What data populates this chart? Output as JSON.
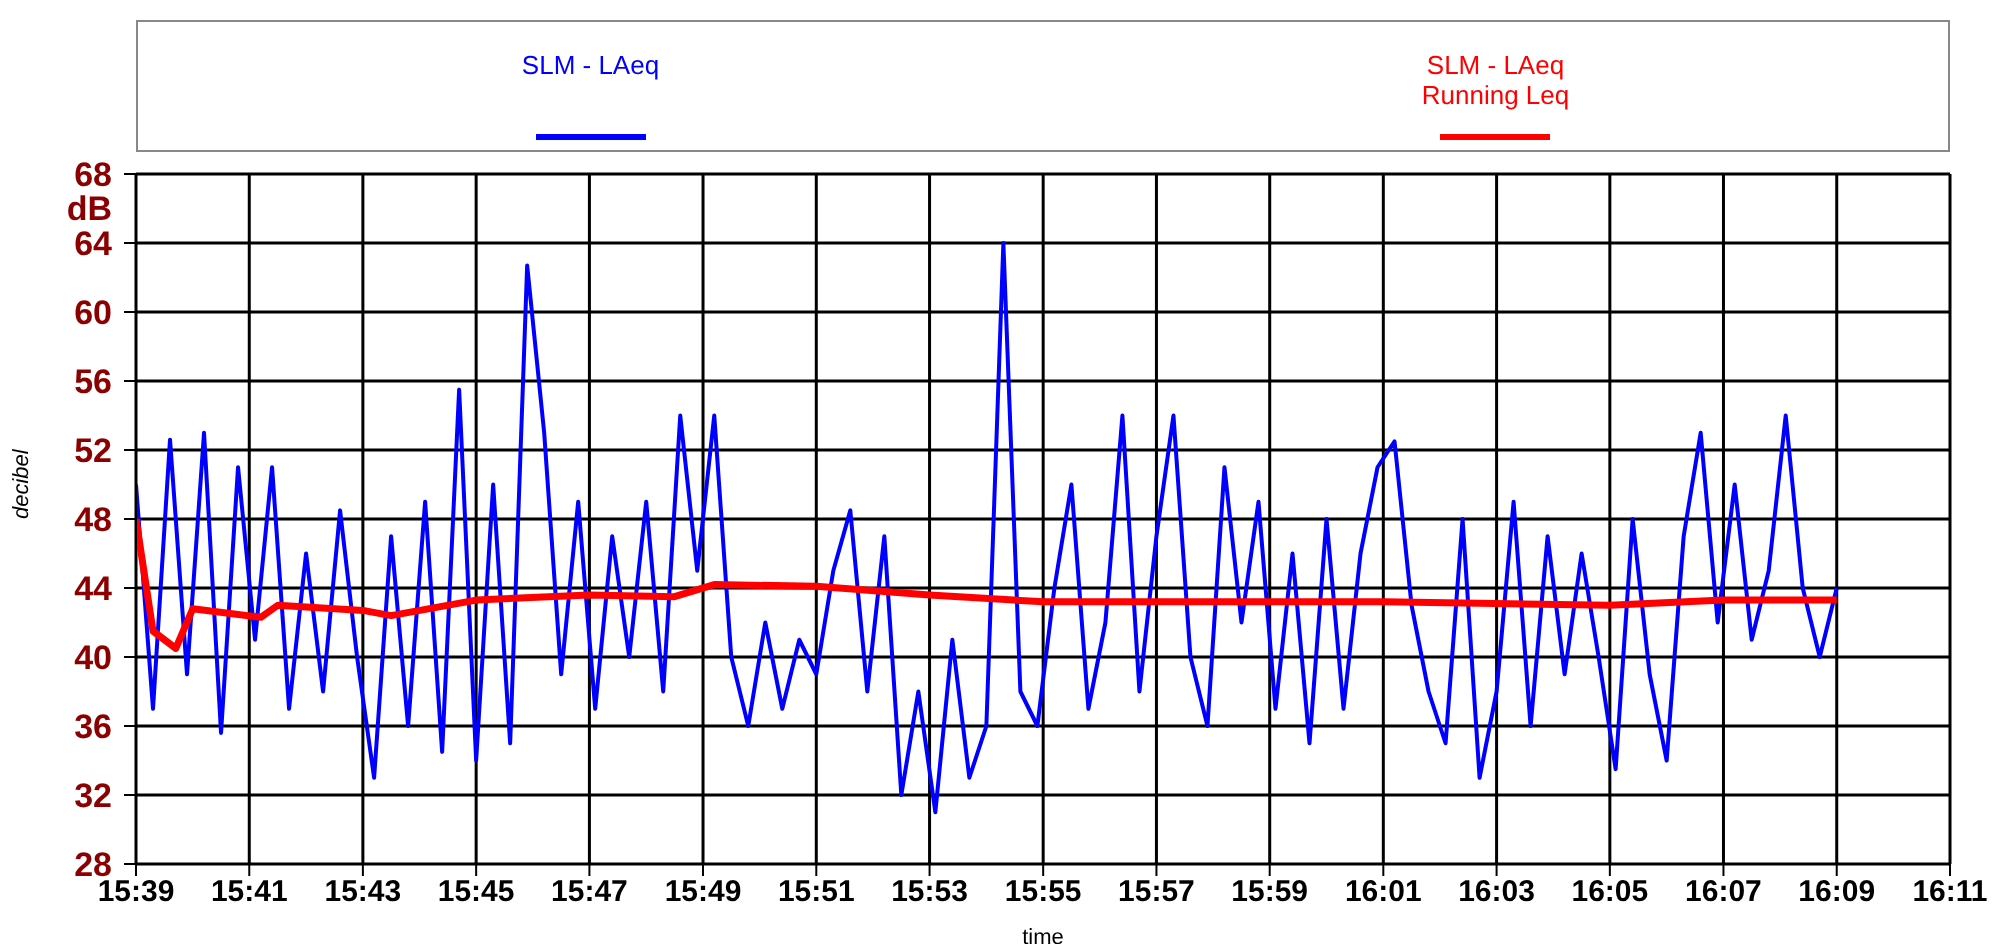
{
  "chart_data": {
    "type": "line",
    "xlabel": "time",
    "ylabel": "decibel",
    "legend": "top",
    "grid": true,
    "xlim": [
      15.65,
      16.1833
    ],
    "ylim": [
      28,
      68
    ],
    "xticks": [
      {
        "value": 15.65,
        "label": "15:39"
      },
      {
        "value": 15.6833,
        "label": "15:41"
      },
      {
        "value": 15.7167,
        "label": "15:43"
      },
      {
        "value": 15.75,
        "label": "15:45"
      },
      {
        "value": 15.7833,
        "label": "15:47"
      },
      {
        "value": 15.8167,
        "label": "15:49"
      },
      {
        "value": 15.85,
        "label": "15:51"
      },
      {
        "value": 15.8833,
        "label": "15:53"
      },
      {
        "value": 15.9167,
        "label": "15:55"
      },
      {
        "value": 15.95,
        "label": "15:57"
      },
      {
        "value": 15.9833,
        "label": "15:59"
      },
      {
        "value": 16.0167,
        "label": "16:01"
      },
      {
        "value": 16.05,
        "label": "16:03"
      },
      {
        "value": 16.0833,
        "label": "16:05"
      },
      {
        "value": 16.1167,
        "label": "16:07"
      },
      {
        "value": 16.15,
        "label": "16:09"
      },
      {
        "value": 16.1833,
        "label": "16:11"
      }
    ],
    "yticks": [
      28,
      32,
      36,
      40,
      44,
      48,
      52,
      56,
      60,
      64,
      {
        "value": 68,
        "label": "68\ndB"
      }
    ],
    "series": [
      {
        "name": "SLM - LAeq",
        "color": "#0000ff",
        "x": [
          15.65,
          15.655,
          15.66,
          15.665,
          15.67,
          15.675,
          15.68,
          15.685,
          15.69,
          15.695,
          15.7,
          15.705,
          15.71,
          15.715,
          15.72,
          15.725,
          15.73,
          15.735,
          15.74,
          15.745,
          15.75,
          15.755,
          15.76,
          15.765,
          15.77,
          15.775,
          15.78,
          15.785,
          15.79,
          15.795,
          15.8,
          15.805,
          15.81,
          15.815,
          15.82,
          15.825,
          15.83,
          15.835,
          15.84,
          15.845,
          15.85,
          15.855,
          15.86,
          15.865,
          15.87,
          15.875,
          15.88,
          15.885,
          15.89,
          15.895,
          15.9,
          15.905,
          15.91,
          15.915,
          15.92,
          15.925,
          15.93,
          15.935,
          15.94,
          15.945,
          15.95,
          15.955,
          15.96,
          15.965,
          15.97,
          15.975,
          15.98,
          15.985,
          15.99,
          15.995,
          16.0,
          16.005,
          16.01,
          16.015,
          16.02,
          16.025,
          16.03,
          16.035,
          16.04,
          16.045,
          16.05,
          16.055,
          16.06,
          16.065,
          16.07,
          16.075,
          16.08,
          16.085,
          16.09,
          16.095,
          16.1,
          16.105,
          16.11,
          16.115,
          16.12,
          16.125,
          16.13,
          16.135,
          16.14,
          16.145,
          16.15
        ],
        "values": [
          50,
          37,
          52.6,
          39,
          53,
          35.6,
          51,
          41,
          51,
          37,
          46,
          38,
          48.5,
          40,
          33,
          47,
          36,
          49,
          34.5,
          55.5,
          34,
          50,
          35,
          62.7,
          53,
          39,
          49,
          37,
          47,
          40,
          49,
          38,
          54,
          45,
          54,
          40,
          36,
          42,
          37,
          41,
          39,
          45,
          48.5,
          38,
          47,
          32,
          38,
          31,
          41,
          33,
          36,
          64,
          38,
          36,
          44,
          50,
          37,
          42,
          54,
          38,
          47,
          54,
          40,
          36,
          51,
          42,
          49,
          37,
          46,
          35,
          48,
          37,
          46,
          51,
          52.5,
          43,
          38,
          35,
          48,
          33,
          38,
          49,
          36,
          47,
          39,
          46,
          40,
          33.5,
          48,
          39,
          34,
          47,
          53,
          42,
          50,
          41,
          45,
          54,
          44,
          40,
          44
        ]
      },
      {
        "name": "SLM - LAeq\nRunning Leq",
        "color": "#ff0000",
        "x": [
          15.65,
          15.655,
          15.6617,
          15.6667,
          15.6867,
          15.6917,
          15.7167,
          15.725,
          15.75,
          15.7833,
          15.8083,
          15.82,
          15.85,
          15.8833,
          15.9167,
          16.0167,
          16.0833,
          16.1167,
          16.15
        ],
        "values": [
          48,
          41.5,
          40.5,
          42.8,
          42.3,
          43,
          42.7,
          42.4,
          43.3,
          43.6,
          43.5,
          44.2,
          44.1,
          43.6,
          43.2,
          43.2,
          43,
          43.3,
          43.3
        ]
      }
    ]
  }
}
